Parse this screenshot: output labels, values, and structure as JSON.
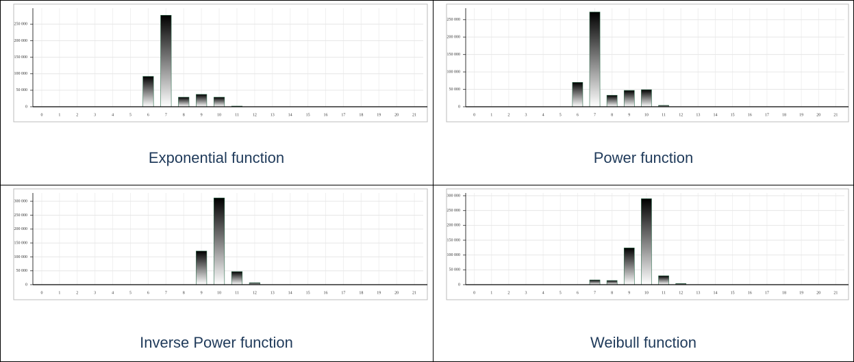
{
  "chart_data": [
    {
      "type": "bar",
      "title": "Exponential function",
      "color": "#5fd08f",
      "grid": true,
      "categories": [
        "0",
        "1",
        "2",
        "3",
        "4",
        "5",
        "6",
        "7",
        "8",
        "9",
        "10",
        "11",
        "12",
        "13",
        "14",
        "15",
        "16",
        "17",
        "18",
        "19",
        "20",
        "21"
      ],
      "values": [
        0,
        0,
        0,
        0,
        0,
        0,
        92000,
        277000,
        29000,
        37500,
        29000,
        2000,
        0,
        0,
        0,
        0,
        0,
        0,
        0,
        0,
        0,
        0
      ],
      "ylim": [
        0,
        290000
      ],
      "yticks": [
        0,
        {
          "value": 50000,
          "label": "50 000"
        },
        {
          "value": 100000,
          "label": "100 000"
        },
        {
          "value": 150000,
          "label": "150 000"
        },
        {
          "value": 200000,
          "label": "200 000"
        },
        {
          "value": 250000,
          "label": "250 000"
        }
      ]
    },
    {
      "type": "bar",
      "title": "Power function",
      "color": "#5fd08f",
      "grid": true,
      "categories": [
        "0",
        "1",
        "2",
        "3",
        "4",
        "5",
        "6",
        "7",
        "8",
        "9",
        "10",
        "11",
        "12",
        "13",
        "14",
        "15",
        "16",
        "17",
        "18",
        "19",
        "20",
        "21"
      ],
      "values": [
        0,
        0,
        0,
        0,
        0,
        0,
        70000,
        272000,
        33000,
        47000,
        49000,
        4000,
        0,
        0,
        0,
        0,
        0,
        0,
        0,
        0,
        0,
        0
      ],
      "ylim": [
        0,
        275000
      ],
      "yticks": [
        0,
        {
          "value": 50000,
          "label": "50 000"
        },
        {
          "value": 100000,
          "label": "100 000"
        },
        {
          "value": 150000,
          "label": "150 000"
        },
        {
          "value": 200000,
          "label": "200 000"
        },
        {
          "value": 250000,
          "label": "250 000"
        }
      ]
    },
    {
      "type": "bar",
      "title": "Inverse Power function",
      "color": "#5fd08f",
      "grid": true,
      "categories": [
        "0",
        "1",
        "2",
        "3",
        "4",
        "5",
        "6",
        "7",
        "8",
        "9",
        "10",
        "11",
        "12",
        "13",
        "14",
        "15",
        "16",
        "17",
        "18",
        "19",
        "20",
        "21"
      ],
      "values": [
        0,
        0,
        0,
        0,
        0,
        0,
        0,
        0,
        0,
        121000,
        312000,
        47000,
        7000,
        0,
        0,
        0,
        0,
        0,
        0,
        0,
        0,
        0
      ],
      "ylim": [
        0,
        320000
      ],
      "yticks": [
        0,
        {
          "value": 50000,
          "label": "50 000"
        },
        {
          "value": 100000,
          "label": "100 000"
        },
        {
          "value": 150000,
          "label": "150 000"
        },
        {
          "value": 200000,
          "label": "200 000"
        },
        {
          "value": 250000,
          "label": "250 000"
        },
        {
          "value": 300000,
          "label": "300 000"
        }
      ]
    },
    {
      "type": "bar",
      "title": "Weibull function",
      "color": "#5fd08f",
      "grid": true,
      "categories": [
        "0",
        "1",
        "2",
        "3",
        "4",
        "5",
        "6",
        "7",
        "8",
        "9",
        "10",
        "11",
        "12",
        "13",
        "14",
        "15",
        "16",
        "17",
        "18",
        "19",
        "20",
        "21"
      ],
      "values": [
        0,
        0,
        0,
        0,
        0,
        0,
        0,
        16000,
        14000,
        124000,
        290000,
        30000,
        4000,
        0,
        0,
        0,
        0,
        0,
        0,
        0,
        0,
        0
      ],
      "ylim": [
        0,
        300000
      ],
      "yticks": [
        0,
        {
          "value": 50000,
          "label": "50 000"
        },
        {
          "value": 100000,
          "label": "100 000"
        },
        {
          "value": 150000,
          "label": "150 000"
        },
        {
          "value": 200000,
          "label": "200 000"
        },
        {
          "value": 250000,
          "label": "250 000"
        },
        {
          "value": 300000,
          "label": "300 000"
        }
      ]
    }
  ]
}
